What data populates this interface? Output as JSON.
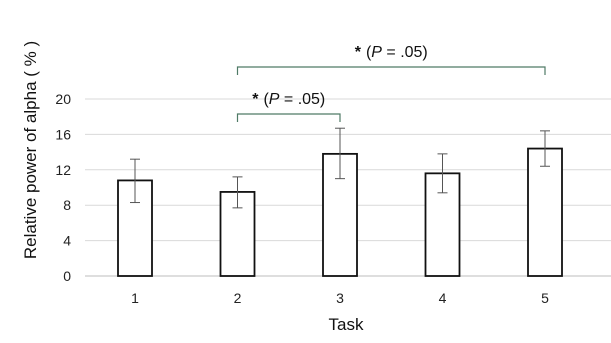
{
  "chart_data": {
    "type": "bar",
    "categories": [
      "1",
      "2",
      "3",
      "4",
      "5"
    ],
    "values": [
      10.8,
      9.5,
      13.8,
      11.6,
      14.4
    ],
    "error_bars": [
      [
        8.3,
        13.2
      ],
      [
        7.7,
        11.2
      ],
      [
        11.0,
        16.7
      ],
      [
        9.4,
        13.8
      ],
      [
        12.4,
        16.4
      ]
    ],
    "title": "",
    "xlabel": "Task",
    "ylabel": "Relative power of alpha ( % )",
    "ylim": [
      0,
      20
    ],
    "yticks": [
      "0",
      "4",
      "8",
      "12",
      "16",
      "20"
    ],
    "grid": true,
    "bar_fill": "#ffffff",
    "bar_stroke": "#111111",
    "grid_color": "#d9d9d9",
    "annotations": [
      {
        "from": "2",
        "to": "3",
        "star": "*",
        "open": "(",
        "p": "P",
        "rest": " = .05)"
      },
      {
        "from": "2",
        "to": "5",
        "star": "*",
        "open": "(",
        "p": "P",
        "rest": " = .05)"
      }
    ]
  }
}
